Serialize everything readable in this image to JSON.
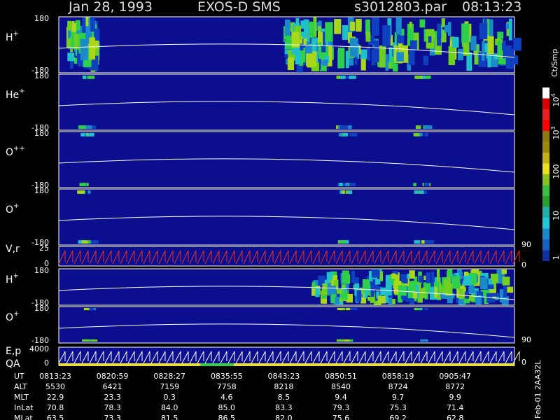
{
  "header": {
    "date": "Jan 28, 1993",
    "instrument": "EXOS-D SMS",
    "file": "s3012803.par",
    "time": "08:13:23"
  },
  "panels": [
    {
      "label": "H",
      "sup": "+",
      "left": [
        "180",
        "-180"
      ],
      "right": []
    },
    {
      "label": "He",
      "sup": "+",
      "left": [
        "180",
        "-180"
      ],
      "right": []
    },
    {
      "label": "O",
      "sup": "++",
      "left": [
        "180",
        "-180"
      ],
      "right": []
    },
    {
      "label": "O",
      "sup": "+",
      "left": [
        "180",
        "-180"
      ],
      "right": []
    },
    {
      "label": "V,r",
      "left": [
        "25",
        "0"
      ],
      "right": [
        "90",
        "0"
      ]
    },
    {
      "label": "H",
      "sup": "+",
      "left": [
        "180",
        "-180"
      ],
      "right": []
    },
    {
      "label": "O",
      "sup": "+",
      "left": [
        "180",
        "-180"
      ],
      "right": [
        "90"
      ]
    },
    {
      "label": "E,p",
      "label2": "QA",
      "left": [
        "4000",
        "0"
      ],
      "right": [
        "0"
      ]
    }
  ],
  "colorbar": {
    "unit": "Ct/Smp",
    "labels": [
      {
        "base": "10",
        "exp": "4"
      },
      {
        "base": "10",
        "exp": "3"
      },
      {
        "base": "100"
      },
      {
        "base": "10"
      },
      {
        "base": "1"
      }
    ]
  },
  "footer": {
    "rows": [
      {
        "label": "UT",
        "values": [
          "0813:23",
          "0820:59",
          "0828:27",
          "0835:55",
          "0843:23",
          "0850:51",
          "0858:19",
          "0905:47"
        ]
      },
      {
        "label": "ALT",
        "values": [
          "5530",
          "6421",
          "7159",
          "7758",
          "8218",
          "8540",
          "8724",
          "8772"
        ]
      },
      {
        "label": "MLT",
        "values": [
          "22.9",
          "23.3",
          "0.3",
          "4.6",
          "8.5",
          "9.4",
          "9.7",
          "9.9"
        ]
      },
      {
        "label": "InLat",
        "values": [
          "70.8",
          "78.3",
          "84.0",
          "85.0",
          "83.3",
          "79.3",
          "75.3",
          "71.4"
        ]
      },
      {
        "label": "MLat",
        "values": [
          "63.5",
          "73.3",
          "81.5",
          "86.5",
          "82.0",
          "75.6",
          "69.2",
          "62.8"
        ]
      }
    ]
  },
  "side_label": "Feb-01 2AA32L"
}
